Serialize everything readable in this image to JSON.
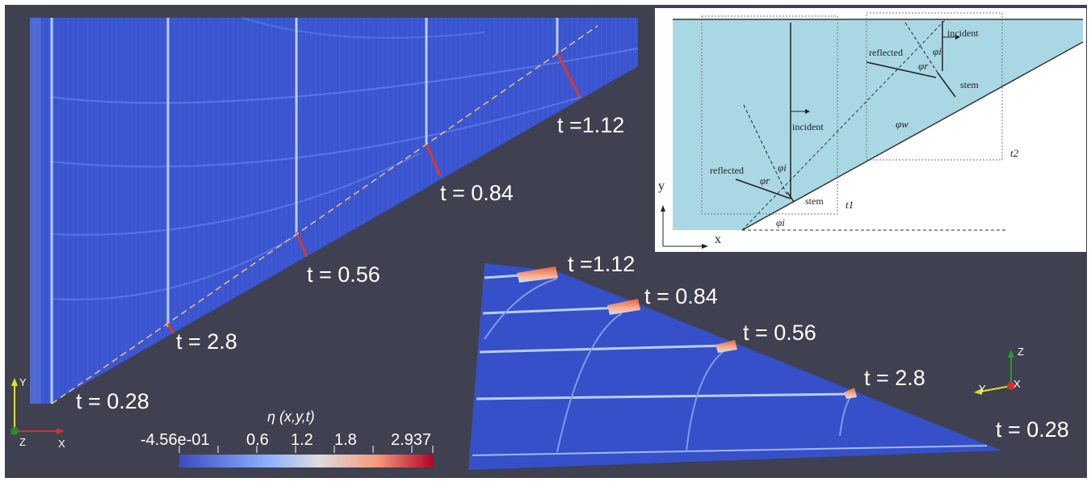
{
  "main_panel": {
    "time_labels": [
      "t =1.12",
      "t = 0.84",
      "t = 0.56",
      "t = 2.8",
      "t = 0.28"
    ],
    "axes": {
      "y": "Y",
      "x": "X",
      "z": "Z"
    }
  },
  "perspective_panel": {
    "time_labels": [
      "t =1.12",
      "t = 0.84",
      "t = 0.56",
      "t = 2.8",
      "t = 0.28"
    ],
    "axes": {
      "z": "Z",
      "y": "Y",
      "x": "X"
    }
  },
  "colorbar": {
    "title": "η (x,y,t)",
    "ticks": [
      "-4.56e-01",
      "0.6",
      "1.2",
      "1.8",
      "2.937"
    ],
    "colors": [
      "#3b4cc0",
      "#8db0fe",
      "#dddddd",
      "#f49a7b",
      "#b40426"
    ]
  },
  "inset": {
    "labels": {
      "incident_top": "incident",
      "reflected_top": "reflected",
      "stem_top": "stem",
      "incident_bottom": "incident",
      "reflected_bottom": "reflected",
      "stem_bottom": "stem",
      "phi_w": "φw",
      "phi_i_top": "φi",
      "phi_r_top": "φr",
      "phi_i_bottom": "φi",
      "phi_r_bottom": "φr",
      "phi_i_base": "φi",
      "t1": "t1",
      "t2": "t2",
      "y_axis": "y",
      "x_axis": "x"
    },
    "fill_color": "#a9d8e4"
  }
}
